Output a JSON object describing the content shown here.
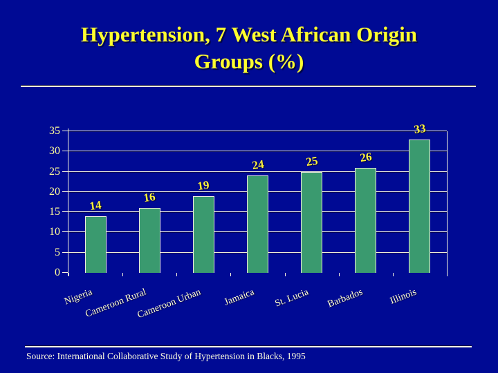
{
  "title": {
    "full": "Hypertension, 7 West African Origin Groups (%)",
    "lines": [
      "Hypertension, 7 West African Origin",
      "Groups (%)"
    ]
  },
  "source": "Source: International Collaborative Study of Hypertension in Blacks, 1995",
  "colors": {
    "background": "#000A94",
    "title_text": "#FFFF2E",
    "bar_fill": "#3A9A6F",
    "bar_outline": "#EDEDE0",
    "value_labels": "#FFF23D",
    "axis_labels": "#FFFF99",
    "category_labels": "#FFFFD6",
    "gridline": "#EFEFD8",
    "divider_line": "#FFFFE0"
  },
  "chart_data": {
    "type": "bar",
    "title": "Hypertension, 7 West African Origin Groups (%)",
    "categories": [
      "Nigeria",
      "Cameroon Rural",
      "Cameroon Urban",
      "Jamaica",
      "St. Lucia",
      "Barbados",
      "Illinois"
    ],
    "values": [
      14,
      16,
      19,
      24,
      25,
      26,
      33
    ],
    "value_labels": [
      "14",
      "16",
      "19",
      "24",
      "25",
      "26",
      "33"
    ],
    "xlabel": "",
    "ylabel": "",
    "ylim": [
      0,
      35
    ],
    "yticks": [
      0,
      5,
      10,
      15,
      20,
      25,
      30,
      35
    ],
    "grid": true,
    "legend": "none",
    "bar_color": "#3A9A6F"
  }
}
